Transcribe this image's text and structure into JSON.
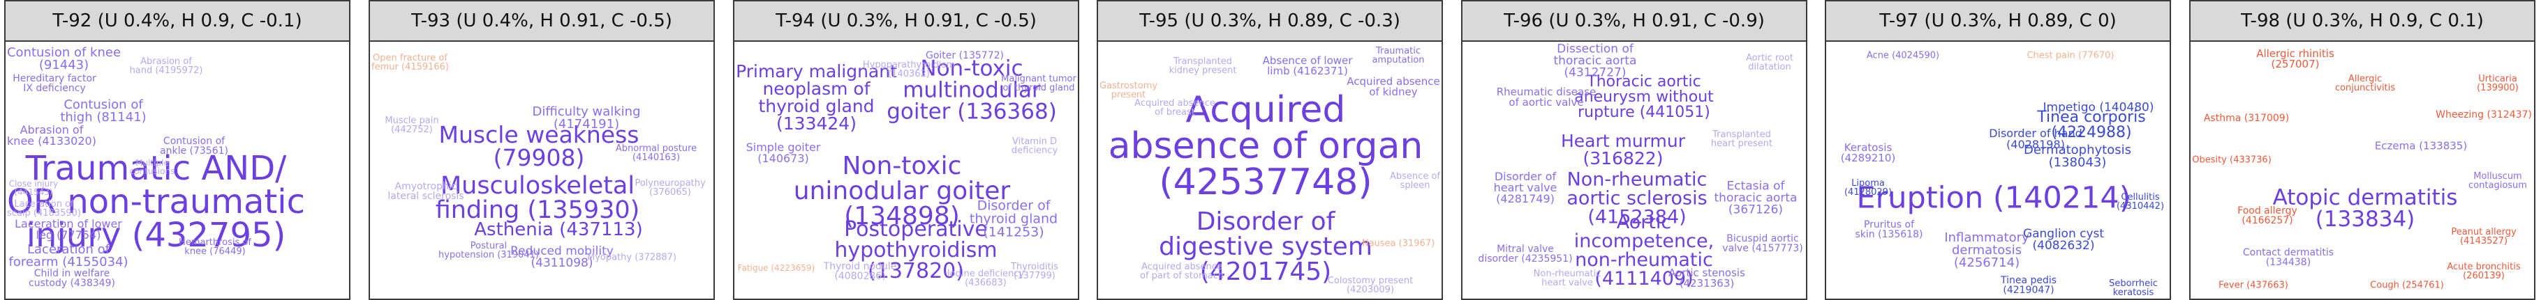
{
  "palette": {
    "strong": "#6b3fe0",
    "medium": "#8a6df0",
    "faint": "#b7a8f2",
    "peach": "#f2b28f",
    "red": "#ef5a38",
    "blue": "#3a49d8"
  },
  "panels": [
    {
      "title": "T-92 (U 0.4%, H 0.9, C -0.1)",
      "words": [
        {
          "text": "Traumatic AND/\nOR non-traumatic\ninjury (432795)",
          "tone": "strong",
          "weight": 0.9
        },
        {
          "text": "Contusion of knee\n(91443)",
          "tone": "medium",
          "weight": 0.22
        },
        {
          "text": "Laceration of\nforearm (4155034)",
          "tone": "medium",
          "weight": 0.2
        },
        {
          "text": "Contusion of\nthigh (81141)",
          "tone": "medium",
          "weight": 0.2
        },
        {
          "text": "Abrasion of\nknee (4133020)",
          "tone": "medium",
          "weight": 0.16
        },
        {
          "text": "Laceration of lower\nleg (77754)",
          "tone": "medium",
          "weight": 0.16
        },
        {
          "text": "Child in welfare\ncustody (438349)",
          "tone": "medium",
          "weight": 0.12
        },
        {
          "text": "Hereditary factor\nIX deficiency",
          "tone": "medium",
          "weight": 0.12
        },
        {
          "text": "Laceration of\nscalp (4183590)",
          "tone": "faint",
          "weight": 0.1
        },
        {
          "text": "Contusion of\nankle (73561)",
          "tone": "medium",
          "weight": 0.12
        },
        {
          "text": "Abrasion of\nhand (4195972)",
          "tone": "faint",
          "weight": 0.1
        },
        {
          "text": "Close injury\n(441543)",
          "tone": "faint",
          "weight": 0.08
        },
        {
          "text": "Multiple\ncontusions",
          "tone": "faint",
          "weight": 0.08
        },
        {
          "text": "Hemarthrosis of\nknee (76449)",
          "tone": "medium",
          "weight": 0.1
        }
      ]
    },
    {
      "title": "T-93 (U 0.4%, H 0.91, C -0.5)",
      "words": [
        {
          "text": "Muscle weakness\n(79908)",
          "tone": "strong",
          "weight": 0.55
        },
        {
          "text": "Musculoskeletal\nfinding (135930)",
          "tone": "strong",
          "weight": 0.6
        },
        {
          "text": "Asthenia (437113)",
          "tone": "strong",
          "weight": 0.4
        },
        {
          "text": "Difficulty walking\n(4174191)",
          "tone": "medium",
          "weight": 0.2
        },
        {
          "text": "Reduced mobility\n(4311098)",
          "tone": "medium",
          "weight": 0.18
        },
        {
          "text": "Amyotrophic\nlateral sclerosis",
          "tone": "faint",
          "weight": 0.12
        },
        {
          "text": "Myopathy (372887)",
          "tone": "faint",
          "weight": 0.1
        },
        {
          "text": "Postural\nhypotension (319041)",
          "tone": "medium",
          "weight": 0.1
        },
        {
          "text": "Open fracture of\nfemur (4159166)",
          "tone": "peach",
          "weight": 0.1
        },
        {
          "text": "Muscle pain\n(442752)",
          "tone": "faint",
          "weight": 0.1
        },
        {
          "text": "Polyneuropathy\n(376065)",
          "tone": "faint",
          "weight": 0.1
        },
        {
          "text": "Abnormal posture\n(4140163)",
          "tone": "medium",
          "weight": 0.1
        }
      ]
    },
    {
      "title": "T-94 (U 0.3%, H 0.91, C -0.5)",
      "words": [
        {
          "text": "Non-toxic\nuninodular goiter\n(134898)",
          "tone": "strong",
          "weight": 0.62
        },
        {
          "text": "Non-toxic\nmultinodular\ngoiter (136368)",
          "tone": "strong",
          "weight": 0.5
        },
        {
          "text": "Postoperative\nhypothyroidism\n(137820)",
          "tone": "strong",
          "weight": 0.48
        },
        {
          "text": "Primary malignant\nneoplasm of\nthyroid gland\n(133424)",
          "tone": "strong",
          "weight": 0.38
        },
        {
          "text": "Disorder of\nthyroid gland\n(141253)",
          "tone": "medium",
          "weight": 0.24
        },
        {
          "text": "Simple goiter\n(140673)",
          "tone": "medium",
          "weight": 0.16
        },
        {
          "text": "Thyroid nodule\n(4080286)",
          "tone": "faint",
          "weight": 0.12
        },
        {
          "text": "Hypoparathyroidism\n(140362)",
          "tone": "faint",
          "weight": 0.1
        },
        {
          "text": "Goiter (135772)",
          "tone": "medium",
          "weight": 0.12
        },
        {
          "text": "Vitamin D\ndeficiency",
          "tone": "faint",
          "weight": 0.1
        },
        {
          "text": "Fatigue (4223659)",
          "tone": "peach",
          "weight": 0.08
        },
        {
          "text": "Thyroiditis\n(137799)",
          "tone": "faint",
          "weight": 0.1
        },
        {
          "text": "Malignant tumor\nof thyroid gland",
          "tone": "medium",
          "weight": 0.1
        },
        {
          "text": "Iodine deficiency\n(436683)",
          "tone": "faint",
          "weight": 0.09
        }
      ]
    },
    {
      "title": "T-95 (U 0.3%, H 0.89, C -0.3)",
      "words": [
        {
          "text": "Acquired\nabsence of organ\n(42537748)",
          "tone": "strong",
          "weight": 1.0
        },
        {
          "text": "Disorder of\ndigestive system\n(4201745)",
          "tone": "strong",
          "weight": 0.62
        },
        {
          "text": "Acquired absence\nof kidney",
          "tone": "medium",
          "weight": 0.14
        },
        {
          "text": "Absence of lower\nlimb (4162371)",
          "tone": "medium",
          "weight": 0.14
        },
        {
          "text": "Transplanted\nkidney present",
          "tone": "faint",
          "weight": 0.1
        },
        {
          "text": "Gastrostomy\npresent",
          "tone": "peach",
          "weight": 0.1
        },
        {
          "text": "Acquired absence\nof breast",
          "tone": "faint",
          "weight": 0.1
        },
        {
          "text": "Colostomy present\n(4203009)",
          "tone": "faint",
          "weight": 0.1
        },
        {
          "text": "Nausea (31967)",
          "tone": "peach",
          "weight": 0.1
        },
        {
          "text": "Traumatic\namputation",
          "tone": "medium",
          "weight": 0.1
        },
        {
          "text": "Acquired absence\nof part of stomach",
          "tone": "faint",
          "weight": 0.09
        },
        {
          "text": "Absence of\nspleen",
          "tone": "faint",
          "weight": 0.09
        }
      ]
    },
    {
      "title": "T-96 (U 0.3%, H 0.91, C -0.9)",
      "words": [
        {
          "text": "Aortic\nincompetence,\nnon-rheumatic\n(4111409)",
          "tone": "strong",
          "weight": 0.42
        },
        {
          "text": "Non-rheumatic\naortic sclerosis\n(4152384)",
          "tone": "strong",
          "weight": 0.42
        },
        {
          "text": "Heart murmur\n(316822)",
          "tone": "strong",
          "weight": 0.38
        },
        {
          "text": "Thoracic aortic\naneurysm without\nrupture (441051)",
          "tone": "strong",
          "weight": 0.3
        },
        {
          "text": "Dissection of\nthoracic aorta\n(4312727)",
          "tone": "medium",
          "weight": 0.18
        },
        {
          "text": "Ectasia of\nthoracic aorta\n(367126)",
          "tone": "medium",
          "weight": 0.18
        },
        {
          "text": "Disorder of\nheart valve\n(4281749)",
          "tone": "medium",
          "weight": 0.16
        },
        {
          "text": "Rheumatic disease\nof aortic valve",
          "tone": "medium",
          "weight": 0.14
        },
        {
          "text": "Aortic stenosis\n(4231363)",
          "tone": "medium",
          "weight": 0.14
        },
        {
          "text": "Transplanted\nheart present",
          "tone": "faint",
          "weight": 0.1
        },
        {
          "text": "Bicuspid aortic\nvalve (4157773)",
          "tone": "medium",
          "weight": 0.12
        },
        {
          "text": "Aortic root\ndilatation",
          "tone": "faint",
          "weight": 0.1
        },
        {
          "text": "Mitral valve\ndisorder (4235951)",
          "tone": "medium",
          "weight": 0.12
        },
        {
          "text": "Non-rheumatic\nheart valve",
          "tone": "faint",
          "weight": 0.1
        }
      ]
    },
    {
      "title": "T-97 (U 0.3%, H 0.89, C 0)",
      "words": [
        {
          "text": "Eruption (140214)",
          "tone": "strong",
          "weight": 0.78
        },
        {
          "text": "Tinea corporis\n(4224988)",
          "tone": "blue",
          "weight": 0.3
        },
        {
          "text": "Impetigo (140480)",
          "tone": "blue",
          "weight": 0.18
        },
        {
          "text": "Dermatophytosis\n(138043)",
          "tone": "blue",
          "weight": 0.2
        },
        {
          "text": "Inflammatory\ndermatosis\n(4256714)",
          "tone": "medium",
          "weight": 0.2
        },
        {
          "text": "Ganglion cyst\n(4082632)",
          "tone": "blue",
          "weight": 0.18
        },
        {
          "text": "Disorder of hand\n(4028198)",
          "tone": "blue",
          "weight": 0.16
        },
        {
          "text": "Keratosis\n(4289210)",
          "tone": "medium",
          "weight": 0.14
        },
        {
          "text": "Tinea pedis\n(4219047)",
          "tone": "blue",
          "weight": 0.12
        },
        {
          "text": "Pruritus of\nskin (135618)",
          "tone": "medium",
          "weight": 0.12
        },
        {
          "text": "Chest pain (77670)",
          "tone": "peach",
          "weight": 0.1
        },
        {
          "text": "Lipoma\n(4128029)",
          "tone": "blue",
          "weight": 0.1
        },
        {
          "text": "Cellulitis\n(4310442)",
          "tone": "blue",
          "weight": 0.1
        },
        {
          "text": "Acne (4024590)",
          "tone": "medium",
          "weight": 0.1
        },
        {
          "text": "Seborrheic\nkeratosis",
          "tone": "blue",
          "weight": 0.1
        }
      ]
    },
    {
      "title": "T-98 (U 0.3%, H 0.9, C 0.1)",
      "words": [
        {
          "text": "Atopic dermatitis\n(133834)",
          "tone": "strong",
          "weight": 0.5
        },
        {
          "text": "Allergic rhinitis\n(257007)",
          "tone": "red",
          "weight": 0.14
        },
        {
          "text": "Wheezing (312437)",
          "tone": "red",
          "weight": 0.12
        },
        {
          "text": "Eczema (133835)",
          "tone": "medium",
          "weight": 0.14
        },
        {
          "text": "Asthma (317009)",
          "tone": "red",
          "weight": 0.12
        },
        {
          "text": "Food allergy\n(4166257)",
          "tone": "red",
          "weight": 0.12
        },
        {
          "text": "Urticaria\n(139900)",
          "tone": "red",
          "weight": 0.1
        },
        {
          "text": "Contact dermatitis\n(134438)",
          "tone": "medium",
          "weight": 0.12
        },
        {
          "text": "Allergic\nconjunctivitis",
          "tone": "red",
          "weight": 0.1
        },
        {
          "text": "Obesity (433736)",
          "tone": "red",
          "weight": 0.1
        },
        {
          "text": "Cough (254761)",
          "tone": "red",
          "weight": 0.1
        },
        {
          "text": "Acute bronchitis\n(260139)",
          "tone": "red",
          "weight": 0.1
        },
        {
          "text": "Fever (437663)",
          "tone": "red",
          "weight": 0.1
        },
        {
          "text": "Molluscum\ncontagiosum",
          "tone": "medium",
          "weight": 0.1
        },
        {
          "text": "Peanut allergy\n(4143527)",
          "tone": "red",
          "weight": 0.1
        }
      ]
    }
  ]
}
